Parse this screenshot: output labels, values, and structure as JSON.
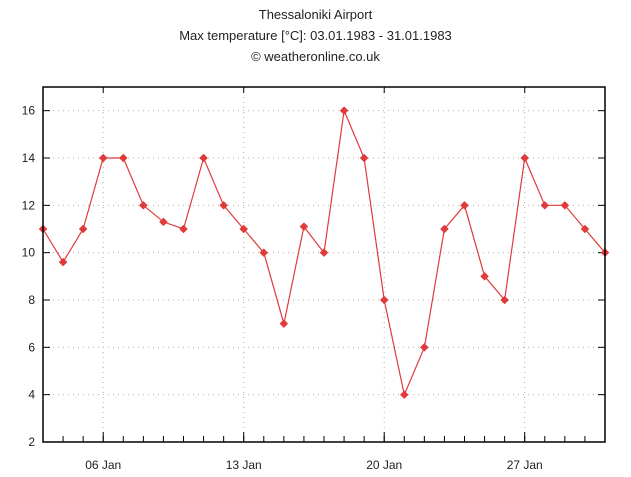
{
  "header": {
    "title": "Thessaloniki Airport",
    "subtitle": "Max temperature [°C]: 03.01.1983 - 31.01.1983",
    "credit": "© weatheronline.co.uk"
  },
  "chart_data": {
    "type": "line",
    "title": "Thessaloniki Airport",
    "subtitle": "Max temperature [°C]: 03.01.1983 - 31.01.1983",
    "xlabel": "",
    "ylabel": "",
    "x": [
      "1983-01-03",
      "1983-01-04",
      "1983-01-05",
      "1983-01-06",
      "1983-01-07",
      "1983-01-08",
      "1983-01-09",
      "1983-01-10",
      "1983-01-11",
      "1983-01-12",
      "1983-01-13",
      "1983-01-14",
      "1983-01-15",
      "1983-01-16",
      "1983-01-17",
      "1983-01-18",
      "1983-01-19",
      "1983-01-20",
      "1983-01-21",
      "1983-01-22",
      "1983-01-23",
      "1983-01-24",
      "1983-01-25",
      "1983-01-26",
      "1983-01-27",
      "1983-01-28",
      "1983-01-29",
      "1983-01-30",
      "1983-01-31"
    ],
    "series": [
      {
        "values": [
          11,
          9.6,
          11,
          14,
          14,
          12,
          11.3,
          11,
          14,
          12,
          11,
          10,
          7,
          11.1,
          10,
          16,
          14,
          8,
          4,
          6,
          11,
          12,
          9,
          8,
          14,
          12,
          12,
          11,
          10
        ],
        "color": "#e03a3a"
      }
    ],
    "xlim": [
      "1983-01-03",
      "1983-01-31"
    ],
    "ylim": [
      2,
      17
    ],
    "yticks": [
      2,
      4,
      6,
      8,
      10,
      12,
      14,
      16
    ],
    "ytick_labels": [
      "2",
      "4",
      "6",
      "8",
      "10",
      "12",
      "14",
      "16"
    ],
    "xticks": [
      "1983-01-06",
      "1983-01-13",
      "1983-01-20",
      "1983-01-27"
    ],
    "xtick_labels": [
      "06 Jan",
      "13 Jan",
      "20 Jan",
      "27 Jan"
    ],
    "grid": true,
    "marker": "diamond"
  }
}
